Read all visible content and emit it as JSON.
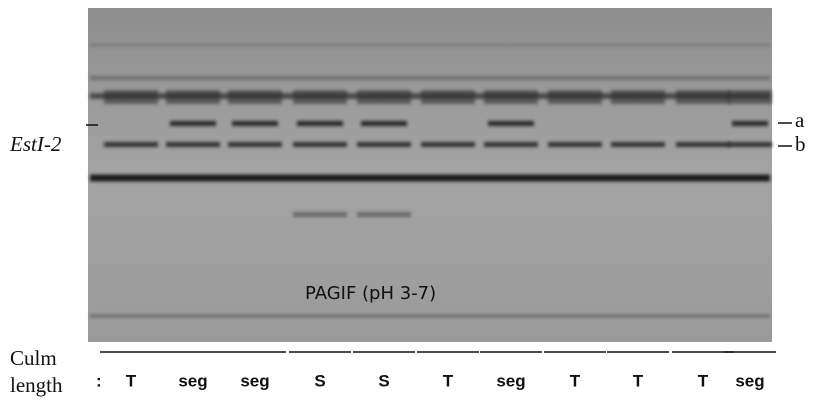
{
  "figure": {
    "marker_label": "EstI-2",
    "band_labels": [
      "a",
      "b"
    ],
    "gel_caption": "PAGIF (pH 3-7)",
    "row_label": [
      "Culm",
      "length"
    ],
    "lane_prefix": ":",
    "lanes": [
      "T",
      "seg",
      "seg",
      "S",
      "S",
      "T",
      "seg",
      "T",
      "T",
      "T",
      "seg"
    ]
  }
}
